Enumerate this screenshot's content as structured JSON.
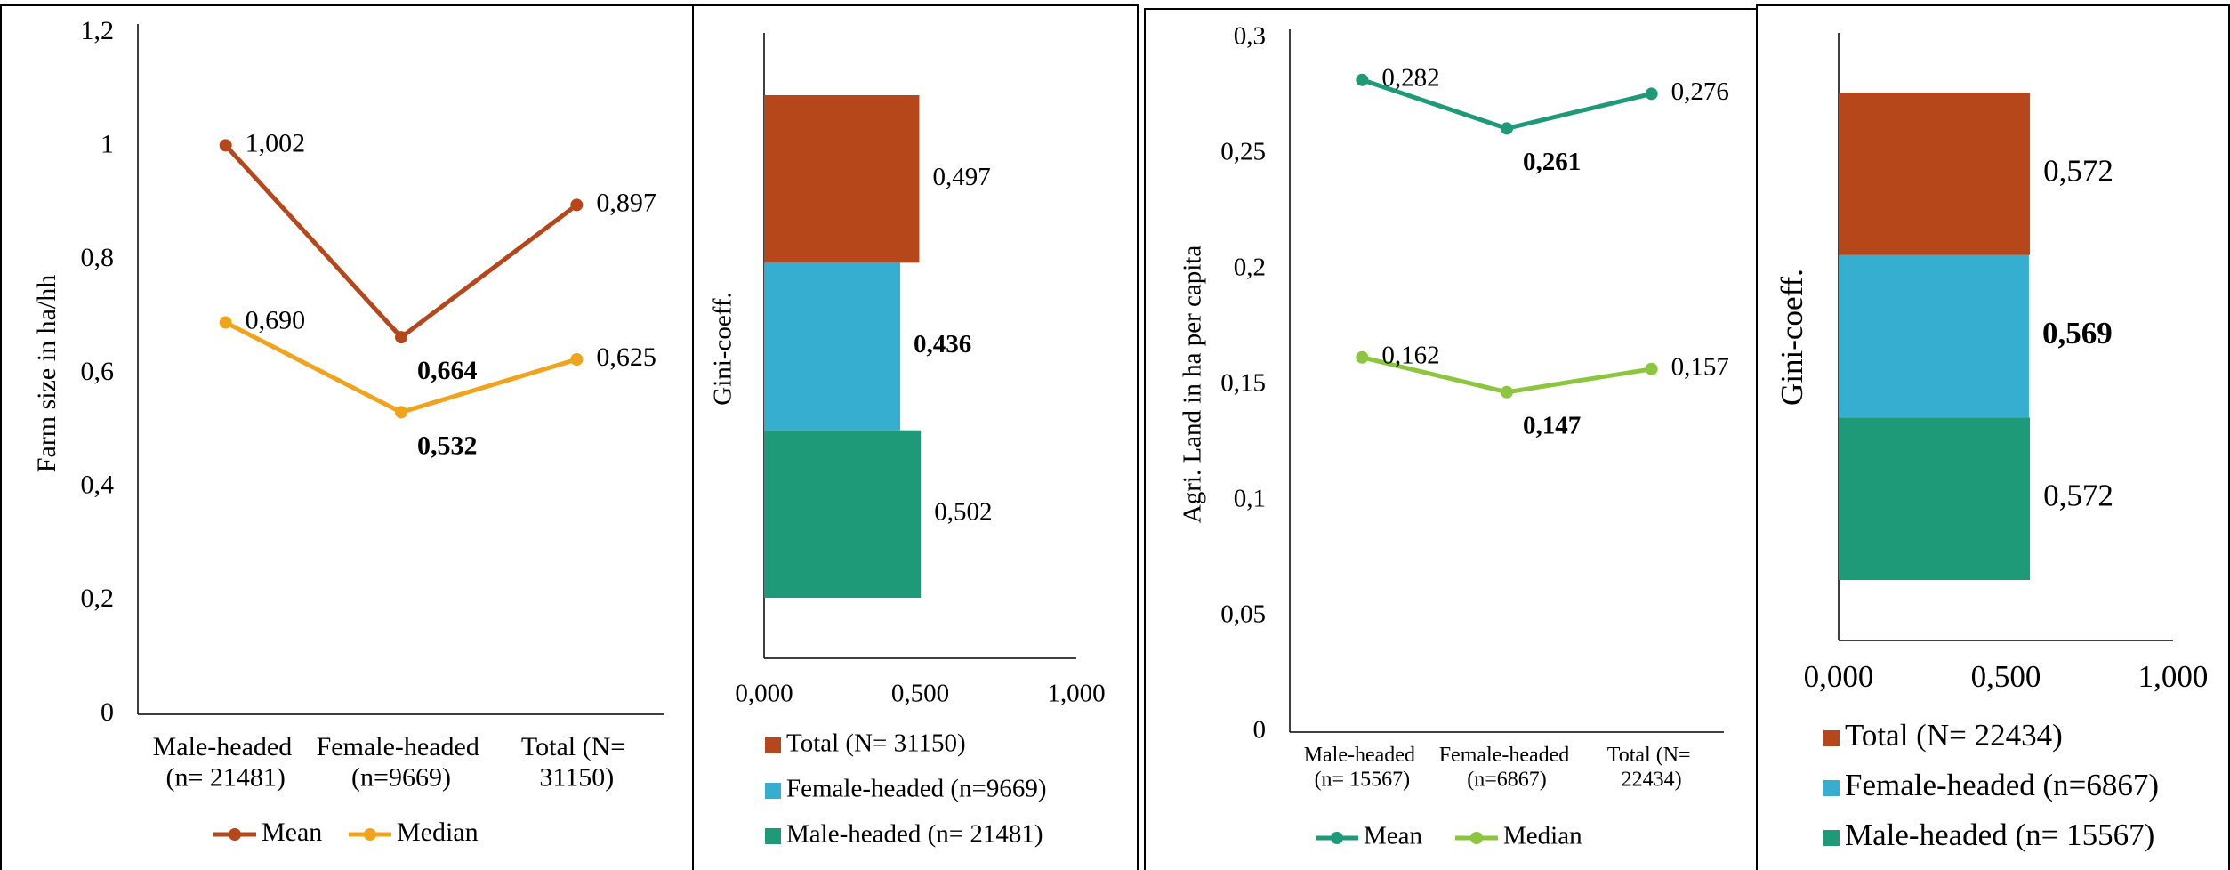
{
  "chart_data": [
    {
      "type": "line",
      "y_label": "Farm size in ha/hh",
      "categories": [
        "Male-headed (n= 21481)",
        "Female-headed (n=9669)",
        "Total (N= 31150)"
      ],
      "series": [
        {
          "name": "Mean",
          "color": "#b5471b",
          "values": [
            1.002,
            0.664,
            0.897
          ],
          "value_labels": [
            "1,002",
            "0,664",
            "0,897"
          ]
        },
        {
          "name": "Median",
          "color": "#f0a41e",
          "values": [
            0.69,
            0.532,
            0.625
          ],
          "value_labels": [
            "0,690",
            "0,532",
            "0,625"
          ]
        }
      ],
      "ylim": [
        0,
        1.2
      ],
      "yticks": [
        0,
        {
          "value": 0.2,
          "label": "0,2"
        },
        {
          "value": 0.4,
          "label": "0,4"
        },
        {
          "value": 0.6,
          "label": "0,6"
        },
        {
          "value": 0.8,
          "label": "0,8"
        },
        1,
        {
          "value": 1.2,
          "label": "1,2"
        }
      ]
    },
    {
      "type": "bar",
      "orientation": "horizontal",
      "y_label": "Gini-coeff.",
      "categories": [
        "Male-headed (n= 21481)",
        "Female-headed (n=9669)",
        "Total (N= 31150)"
      ],
      "values": [
        0.502,
        0.436,
        0.497
      ],
      "value_labels": [
        "0,502",
        "0,436",
        "0,497"
      ],
      "colors": [
        "#1e9a78",
        "#36aecf",
        "#b5471b"
      ],
      "xlim": [
        0,
        1
      ],
      "xticks": [
        {
          "value": 0,
          "label": "0,000"
        },
        {
          "value": 0.5,
          "label": "0,500"
        },
        {
          "value": 1,
          "label": "1,000"
        }
      ]
    },
    {
      "type": "line",
      "y_label": "Agri. Land in ha per capita",
      "categories": [
        "Male-headed (n= 15567)",
        "Female-headed (n=6867)",
        "Total (N= 22434)"
      ],
      "series": [
        {
          "name": "Mean",
          "color": "#1e9a78",
          "values": [
            0.282,
            0.261,
            0.276
          ],
          "value_labels": [
            "0,282",
            "0,261",
            "0,276"
          ]
        },
        {
          "name": "Median",
          "color": "#8cc63f",
          "values": [
            0.162,
            0.147,
            0.157
          ],
          "value_labels": [
            "0,162",
            "0,147",
            "0,157"
          ]
        }
      ],
      "ylim": [
        0,
        0.3
      ],
      "yticks": [
        0,
        {
          "value": 0.05,
          "label": "0,05"
        },
        {
          "value": 0.1,
          "label": "0,1"
        },
        {
          "value": 0.15,
          "label": "0,15"
        },
        {
          "value": 0.2,
          "label": "0,2"
        },
        {
          "value": 0.25,
          "label": "0,25"
        },
        {
          "value": 0.3,
          "label": "0,3"
        }
      ]
    },
    {
      "type": "bar",
      "orientation": "horizontal",
      "y_label": "Gini-coeff.",
      "categories": [
        "Male-headed (n= 15567)",
        "Female-headed (n=6867)",
        "Total (N= 22434)"
      ],
      "values": [
        0.572,
        0.569,
        0.572
      ],
      "value_labels": [
        "0,572",
        "0,569",
        "0,572"
      ],
      "colors": [
        "#1e9a78",
        "#36aecf",
        "#b5471b"
      ],
      "xlim": [
        0,
        1
      ],
      "xticks": [
        {
          "value": 0,
          "label": "0,000"
        },
        {
          "value": 0.5,
          "label": "0,500"
        },
        {
          "value": 1,
          "label": "1,000"
        }
      ]
    }
  ]
}
